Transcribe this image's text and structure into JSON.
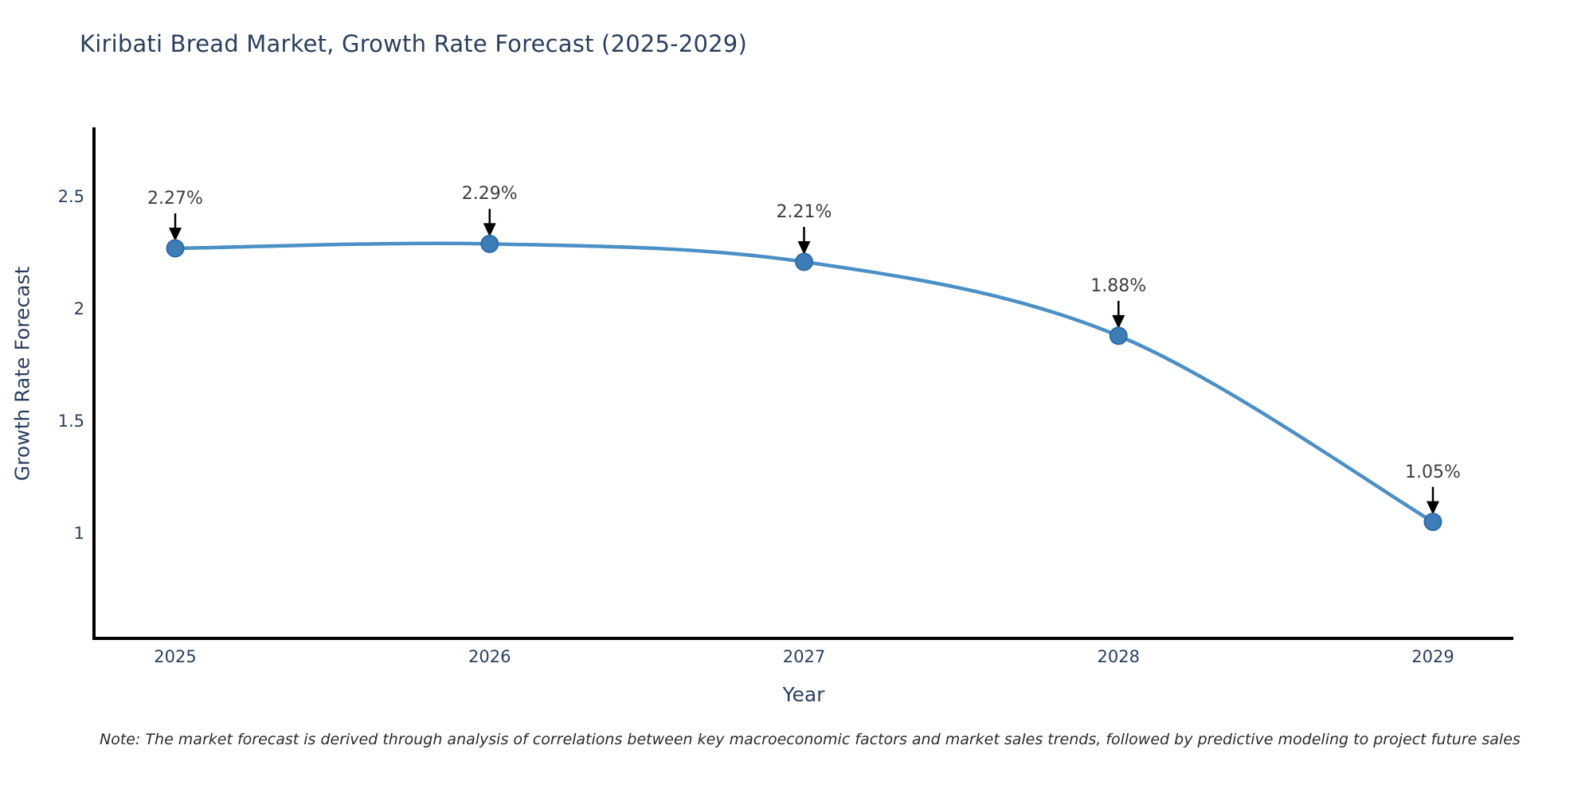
{
  "title": "Kiribati Bread Market, Growth Rate Forecast (2025-2029)",
  "note": "Note: The market forecast is derived through analysis of correlations between key macroeconomic factors and market sales trends, followed by predictive modeling to project future sales",
  "chart_data": {
    "type": "line",
    "title": "Kiribati Bread Market, Growth Rate Forecast (2025-2029)",
    "xlabel": "Year",
    "ylabel": "Growth Rate Forecast",
    "x": [
      2025,
      2026,
      2027,
      2028,
      2029
    ],
    "x_tick_labels": [
      "2025",
      "2026",
      "2027",
      "2028",
      "2029"
    ],
    "y_tick_values": [
      2.5,
      2.0,
      1.5,
      1.0
    ],
    "y_tick_labels": [
      "2.5",
      "2",
      "1.5",
      "1"
    ],
    "ylim": [
      0.53,
      2.81
    ],
    "series": [
      {
        "name": "Growth Rate Forecast",
        "values": [
          2.27,
          2.29,
          2.21,
          1.88,
          1.05
        ]
      }
    ],
    "point_labels": [
      "2.27%",
      "2.29%",
      "2.21%",
      "1.88%",
      "1.05%"
    ],
    "grid": "off",
    "legend": "none",
    "line_color": "#4a8fc5",
    "marker_fill_color": "#3d7eb8",
    "marker_edge_color": "#2e6ba5",
    "axis_color": "#000000",
    "annotation_arrow_color": "#000000",
    "title_color": "#2a3f5f"
  }
}
